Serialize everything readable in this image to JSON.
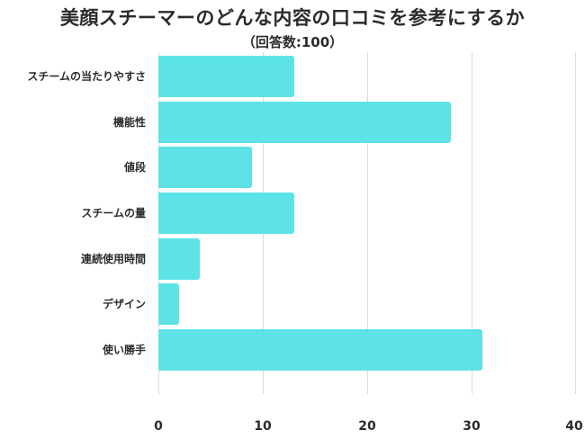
{
  "chart_data": {
    "type": "bar",
    "orientation": "horizontal",
    "title": "美顔スチーマーのどんな内容の口コミを参考にするか",
    "subtitle": "（回答数:100）",
    "categories": [
      "スチームの当たりやすさ",
      "機能性",
      "値段",
      "スチームの量",
      "連続使用時間",
      "デザイン",
      "使い勝手"
    ],
    "values": [
      13,
      28,
      9,
      13,
      4,
      2,
      31
    ],
    "xlabel": "",
    "ylabel": "",
    "xlim": [
      0,
      40
    ],
    "xticks": [
      "0",
      "10",
      "20",
      "30",
      "40"
    ],
    "grid": true,
    "legend": null,
    "bar_color": "#5de2e6"
  }
}
